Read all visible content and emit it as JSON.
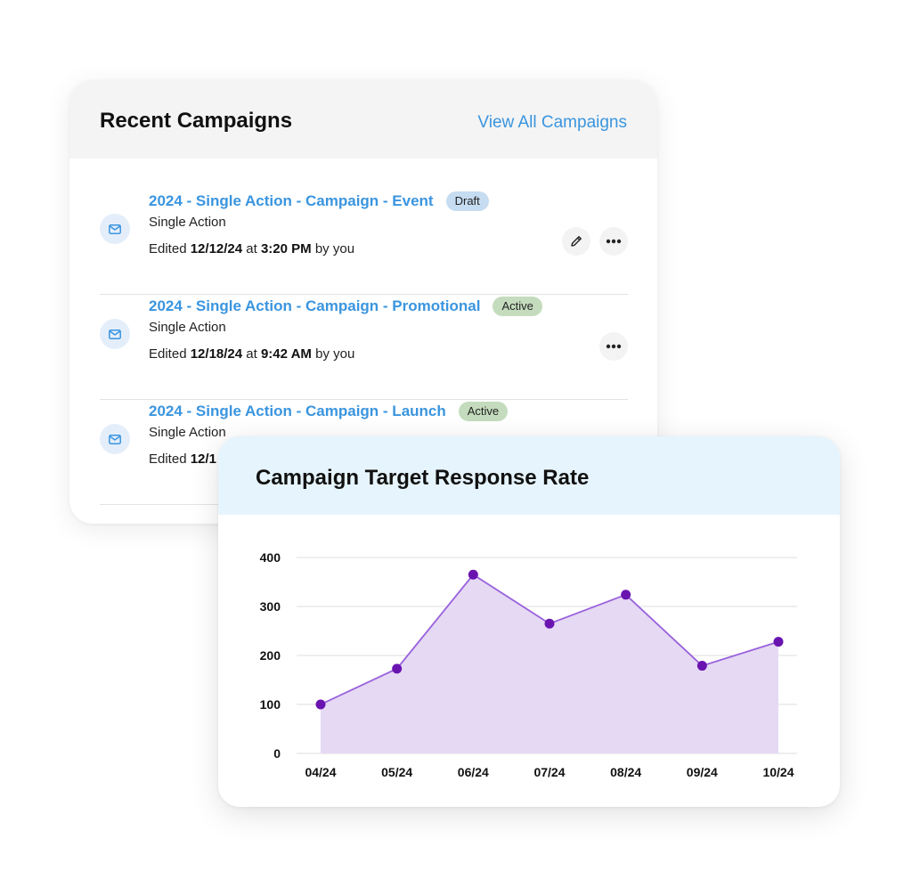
{
  "campaigns_card": {
    "title": "Recent Campaigns",
    "view_all_label": "View All Campaigns",
    "items": [
      {
        "name": "2024 - Single Action - Campaign - Event",
        "status": "Draft",
        "type": "Single Action",
        "edited_prefix": "Edited",
        "edited_date": "12/12/24",
        "edited_at": "at",
        "edited_time": "3:20 PM",
        "edited_by": "by you",
        "has_edit_button": true
      },
      {
        "name": "2024 - Single Action - Campaign - Promotional",
        "status": "Active",
        "type": "Single Action",
        "edited_prefix": "Edited",
        "edited_date": "12/18/24",
        "edited_at": "at",
        "edited_time": "9:42 AM",
        "edited_by": "by you",
        "has_edit_button": false
      },
      {
        "name": "2024 - Single Action - Campaign - Launch",
        "status": "Active",
        "type": "Single Action",
        "edited_prefix": "Edited",
        "edited_date": "12/1",
        "edited_at": "",
        "edited_time": "",
        "edited_by": "",
        "has_edit_button": false
      }
    ]
  },
  "chart_card": {
    "title": "Campaign Target Response Rate"
  },
  "chart_data": {
    "type": "area",
    "title": "Campaign Target Response Rate",
    "categories": [
      "04/24",
      "05/24",
      "06/24",
      "07/24",
      "08/24",
      "09/24",
      "10/24"
    ],
    "values": [
      100,
      173,
      365,
      265,
      324,
      179,
      228
    ],
    "ylim": [
      0,
      400
    ],
    "yticks": [
      "400",
      "300",
      "200",
      "100",
      "0"
    ],
    "grid": true,
    "colors": {
      "line": "#9a62dc",
      "fill": "#e6d9f4",
      "marker": "#6a14b0"
    }
  },
  "colors": {
    "link": "#3a95df",
    "draft_badge": "#c5dcf1",
    "active_badge": "#c4dcbd",
    "chart_header_bg": "#e6f4fd"
  },
  "icons": {
    "mail": "mail-icon",
    "edit": "pencil-icon",
    "more": "more-icon"
  }
}
